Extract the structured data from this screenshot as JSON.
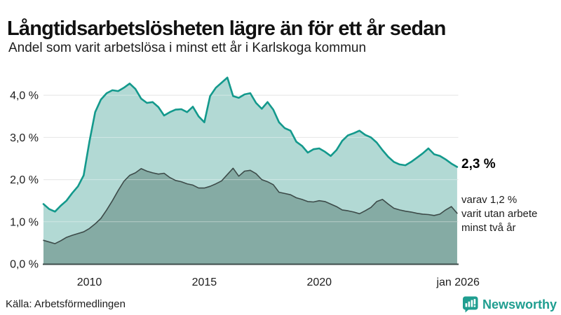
{
  "header": {
    "title": "Långtidsarbetslösheten lägre än för ett år sedan",
    "subtitle": "Andel som varit arbetslösa i minst ett år i Karlskoga kommun"
  },
  "footer": {
    "source": "Källa: Arbetsförmedlingen"
  },
  "branding": {
    "logo_text": "Newsworthy",
    "logo_icon": "bar-chart-speech-bubble-icon",
    "brand_color": "#1f9e90"
  },
  "colors": {
    "text": "#1d1d1d",
    "title": "#111111",
    "grid": "#d9d9d9",
    "grid_over_fill": "#ffffff",
    "axis_line": "#3d4b49",
    "series1_line": "#13998c",
    "series1_fill": "#b2d9d4",
    "series2_line": "#3d4b49",
    "series2_fill": "#85aba4"
  },
  "chart_data": {
    "type": "area",
    "title": "Långtidsarbetslösheten lägre än för ett år sedan",
    "subtitle": "Andel som varit arbetslösa i minst ett år i Karlskoga kommun",
    "source": "Källa: Arbetsförmedlingen",
    "grid": true,
    "legend": "none",
    "x_range": [
      2008,
      2026.05
    ],
    "y_range": [
      0,
      4.6
    ],
    "x_ticks": [
      {
        "v": 2010,
        "label": "2010"
      },
      {
        "v": 2015,
        "label": "2015"
      },
      {
        "v": 2020,
        "label": "2020"
      },
      {
        "v": 2026.04,
        "label": "jan 2026"
      }
    ],
    "y_ticks": [
      {
        "v": 0,
        "label": "0,0 %"
      },
      {
        "v": 1,
        "label": "1,0 %"
      },
      {
        "v": 2,
        "label": "2,0 %"
      },
      {
        "v": 3,
        "label": "3,0 %"
      },
      {
        "v": 4,
        "label": "4,0 %"
      }
    ],
    "end_annotation": {
      "value_label": "2,3 %",
      "note_lines": [
        "varav 1,2 %",
        "varit utan arbete",
        "minst två år"
      ]
    },
    "x": [
      2008,
      2008.25,
      2008.5,
      2008.75,
      2009,
      2009.25,
      2009.5,
      2009.75,
      2010,
      2010.25,
      2010.5,
      2010.75,
      2011,
      2011.25,
      2011.5,
      2011.75,
      2012,
      2012.25,
      2012.5,
      2012.75,
      2013,
      2013.25,
      2013.5,
      2013.75,
      2014,
      2014.25,
      2014.5,
      2014.75,
      2015,
      2015.25,
      2015.5,
      2015.75,
      2016,
      2016.25,
      2016.5,
      2016.75,
      2017,
      2017.25,
      2017.5,
      2017.75,
      2018,
      2018.25,
      2018.5,
      2018.75,
      2019,
      2019.25,
      2019.5,
      2019.75,
      2020,
      2020.25,
      2020.5,
      2020.75,
      2021,
      2021.25,
      2021.5,
      2021.75,
      2022,
      2022.25,
      2022.5,
      2022.75,
      2023,
      2023.25,
      2023.5,
      2023.75,
      2024,
      2024.25,
      2024.5,
      2024.75,
      2025,
      2025.25,
      2025.5,
      2025.75,
      2026
    ],
    "series": [
      {
        "name": "Arbetslösa minst ett år",
        "end_value": 2.3,
        "color": "#13998c",
        "fill": "#b2d9d4",
        "values": [
          1.42,
          1.3,
          1.24,
          1.38,
          1.5,
          1.68,
          1.84,
          2.1,
          2.9,
          3.6,
          3.9,
          4.05,
          4.12,
          4.1,
          4.18,
          4.28,
          4.15,
          3.92,
          3.82,
          3.84,
          3.72,
          3.52,
          3.6,
          3.66,
          3.67,
          3.6,
          3.73,
          3.5,
          3.36,
          3.98,
          4.18,
          4.3,
          4.42,
          3.98,
          3.94,
          4.02,
          4.05,
          3.82,
          3.68,
          3.84,
          3.66,
          3.36,
          3.22,
          3.16,
          2.9,
          2.8,
          2.64,
          2.72,
          2.74,
          2.66,
          2.56,
          2.7,
          2.92,
          3.05,
          3.1,
          3.16,
          3.06,
          3.0,
          2.88,
          2.7,
          2.54,
          2.42,
          2.36,
          2.34,
          2.42,
          2.52,
          2.62,
          2.74,
          2.6,
          2.56,
          2.48,
          2.38,
          2.3
        ]
      },
      {
        "name": "Arbetslösa minst två år",
        "end_value": 1.2,
        "color": "#3d4b49",
        "fill": "#85aba4",
        "values": [
          0.56,
          0.52,
          0.48,
          0.55,
          0.63,
          0.68,
          0.72,
          0.76,
          0.84,
          0.95,
          1.08,
          1.28,
          1.5,
          1.74,
          1.96,
          2.1,
          2.16,
          2.26,
          2.2,
          2.16,
          2.13,
          2.15,
          2.05,
          1.98,
          1.95,
          1.9,
          1.87,
          1.8,
          1.8,
          1.84,
          1.9,
          1.97,
          2.12,
          2.27,
          2.08,
          2.2,
          2.22,
          2.14,
          2.0,
          1.95,
          1.88,
          1.7,
          1.67,
          1.64,
          1.57,
          1.53,
          1.48,
          1.47,
          1.5,
          1.48,
          1.42,
          1.36,
          1.28,
          1.26,
          1.23,
          1.19,
          1.26,
          1.34,
          1.48,
          1.53,
          1.42,
          1.32,
          1.28,
          1.25,
          1.23,
          1.2,
          1.18,
          1.17,
          1.15,
          1.18,
          1.28,
          1.36,
          1.2
        ]
      }
    ]
  }
}
